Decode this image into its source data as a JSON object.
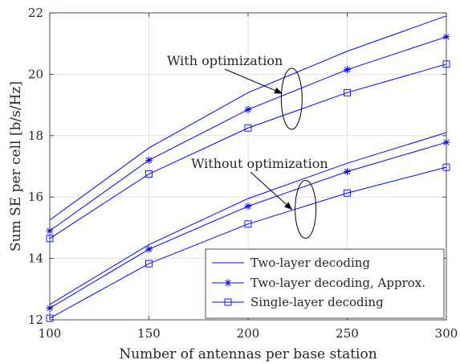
{
  "chart_data": {
    "type": "line",
    "x": [
      100,
      150,
      200,
      250,
      300
    ],
    "xlabel": "Number of antennas per base station",
    "ylabel": "Sum SE per cell [b/s/Hz]",
    "xlim": [
      100,
      300
    ],
    "ylim": [
      12,
      22
    ],
    "xticks": [
      100,
      150,
      200,
      250,
      300
    ],
    "yticks": [
      12,
      14,
      16,
      18,
      20,
      22
    ],
    "grid": true,
    "legend_position": "bottom-right",
    "line_color": "#0000ff",
    "series": [
      {
        "name": "Two-layer decoding",
        "marker": "none",
        "group": "with",
        "values": [
          15.25,
          17.6,
          19.4,
          20.75,
          21.9
        ]
      },
      {
        "name": "Two-layer decoding, Approx.",
        "marker": "asterisk",
        "group": "with",
        "values": [
          14.9,
          17.2,
          18.85,
          20.15,
          21.22
        ]
      },
      {
        "name": "Single-layer decoding",
        "marker": "square",
        "group": "with",
        "values": [
          14.65,
          16.75,
          18.25,
          19.4,
          20.33
        ]
      },
      {
        "name": "Two-layer decoding",
        "marker": "none",
        "group": "without",
        "values": [
          12.5,
          14.45,
          15.95,
          17.1,
          18.1
        ]
      },
      {
        "name": "Two-layer decoding, Approx.",
        "marker": "asterisk",
        "group": "without",
        "values": [
          12.38,
          14.3,
          15.7,
          16.83,
          17.78
        ]
      },
      {
        "name": "Single-layer decoding",
        "marker": "square",
        "group": "without",
        "values": [
          12.05,
          13.83,
          15.12,
          16.13,
          16.97
        ]
      }
    ],
    "legend": [
      {
        "label": "Two-layer decoding",
        "marker": "none"
      },
      {
        "label": "Two-layer decoding, Approx.",
        "marker": "asterisk"
      },
      {
        "label": "Single-layer decoding",
        "marker": "square"
      }
    ],
    "annotations": [
      {
        "text": "With optimization",
        "arrow_to": [
          217,
          19.38
        ],
        "ellipse_center": [
          222,
          19.2
        ]
      },
      {
        "text": "Without optimization",
        "arrow_to": [
          222,
          15.6
        ],
        "ellipse_center": [
          229,
          15.6
        ]
      }
    ]
  }
}
